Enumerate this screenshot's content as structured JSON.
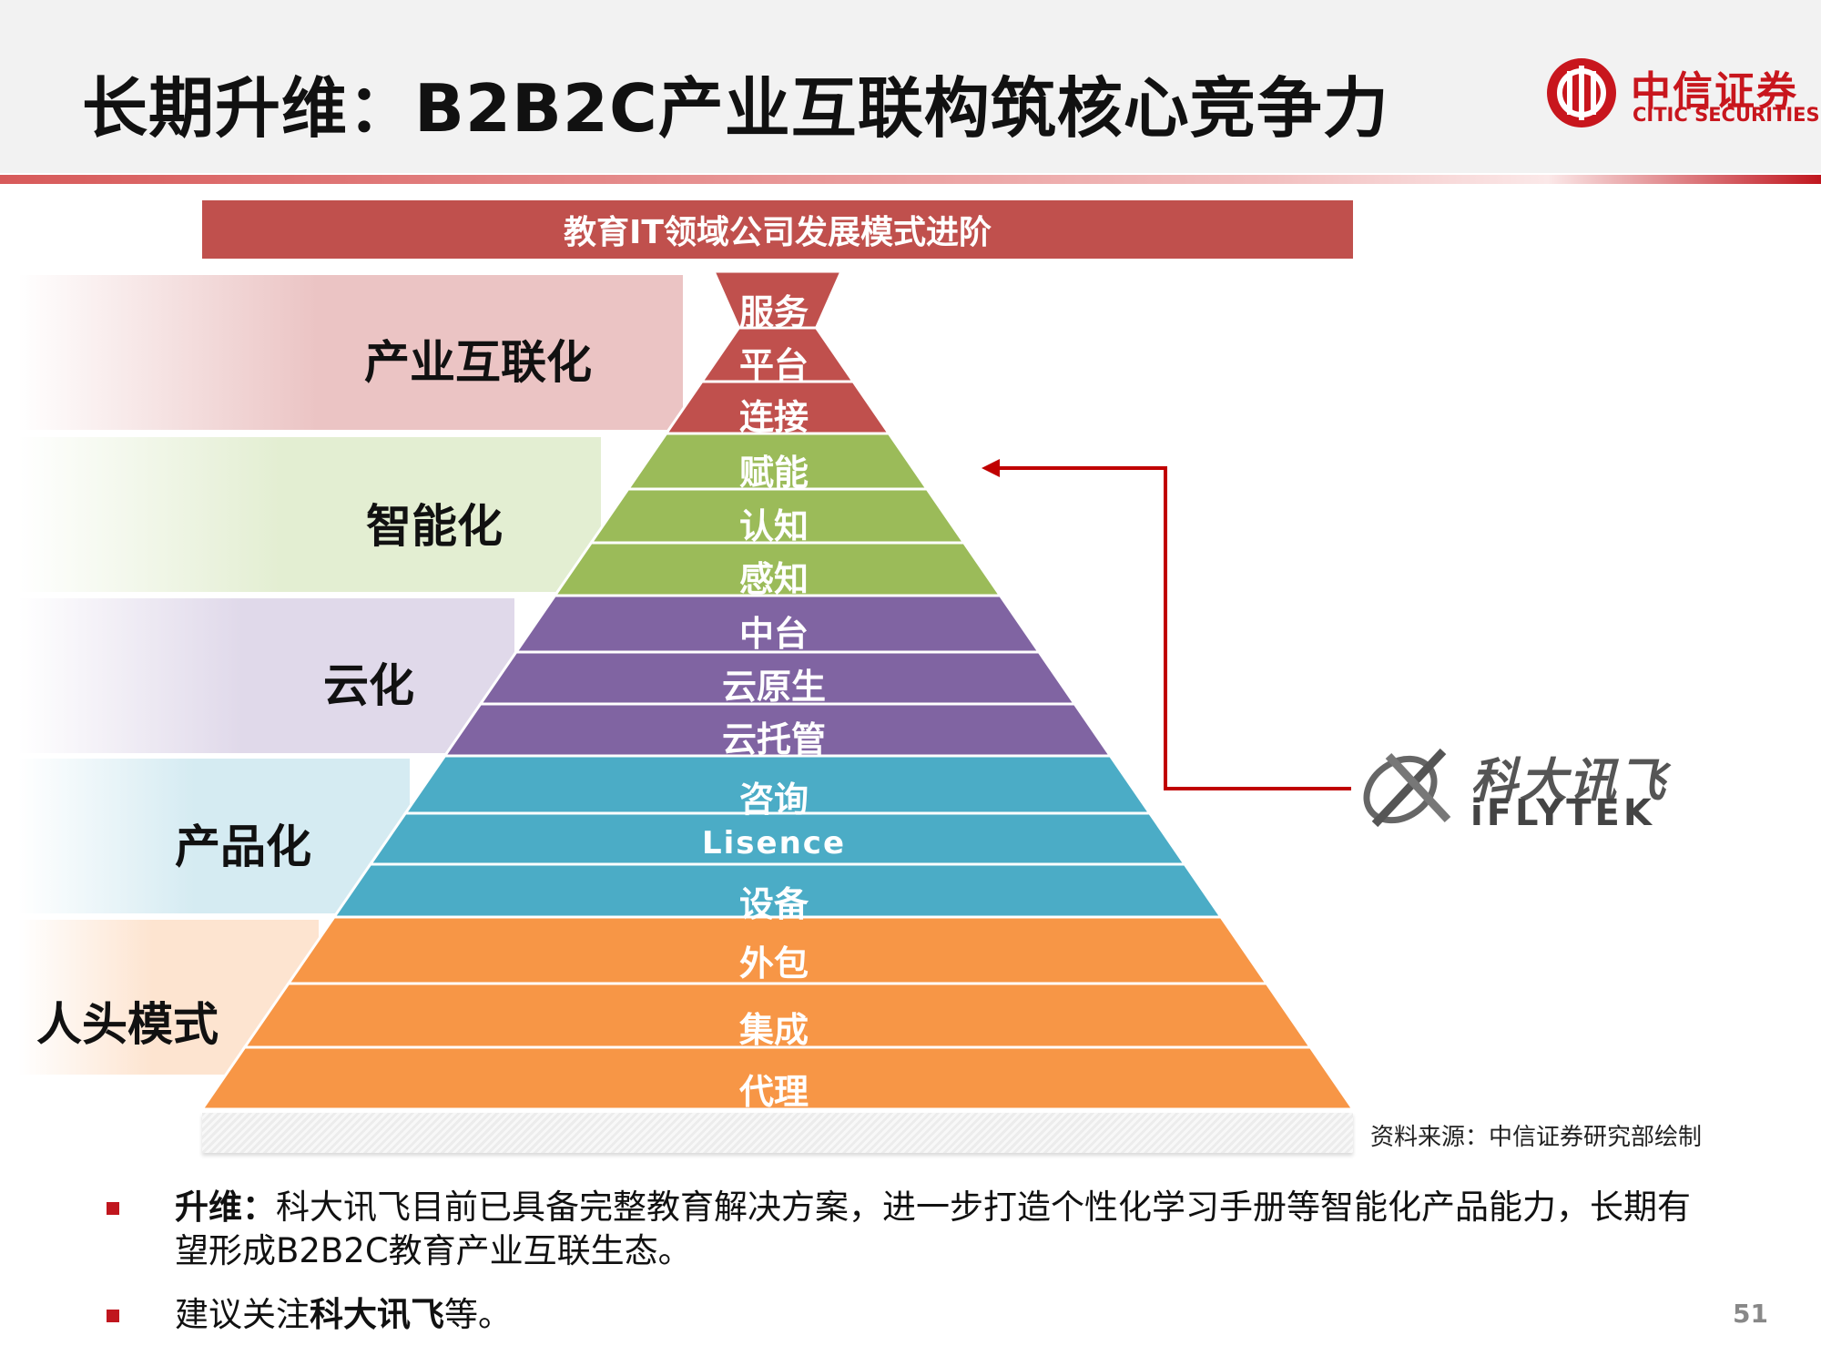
{
  "title": "长期升维：B2B2C产业互联构筑核心竞争力",
  "logo": {
    "cn": "中信证券",
    "en": "CITIC SECURITIES",
    "icon": "citic-logo-icon"
  },
  "diagram": {
    "title": "教育IT领域公司发展模式进阶",
    "stages": [
      {
        "name": "产业互联化",
        "color": "#c0504d",
        "band_color": "#ebc4c4",
        "levels": [
          "服务",
          "平台",
          "连接"
        ]
      },
      {
        "name": "智能化",
        "color": "#9bbb59",
        "band_color": "#e3eed2",
        "levels": [
          "赋能",
          "认知",
          "感知"
        ]
      },
      {
        "name": "云化",
        "color": "#8064a2",
        "band_color": "#e0d9ea",
        "levels": [
          "中台",
          "云原生",
          "云托管"
        ]
      },
      {
        "name": "产品化",
        "color": "#4bacc6",
        "band_color": "#d5ebf2",
        "levels": [
          "咨询",
          "Lisence",
          "设备"
        ]
      },
      {
        "name": "人头模式",
        "color": "#f79646",
        "band_color": "#fde4d0",
        "levels": [
          "外包",
          "集成",
          "代理"
        ]
      }
    ],
    "iflytek": {
      "cn": "科大讯飞",
      "en": "iFLYTEK",
      "points_to": "赋能"
    },
    "arrow_color": "#c00000",
    "source": "资料来源：中信证券研究部绘制"
  },
  "bullets": [
    {
      "bold": "升维：",
      "text": "科大讯飞目前已具备完整教育解决方案，进一步打造个性化学习手册等智能化产品能力，长期有望形成B2B2C教育产业互联生态。"
    },
    {
      "pre": "建议关注",
      "bold": "科大讯飞",
      "post": "等。"
    }
  ],
  "page_number": "51"
}
